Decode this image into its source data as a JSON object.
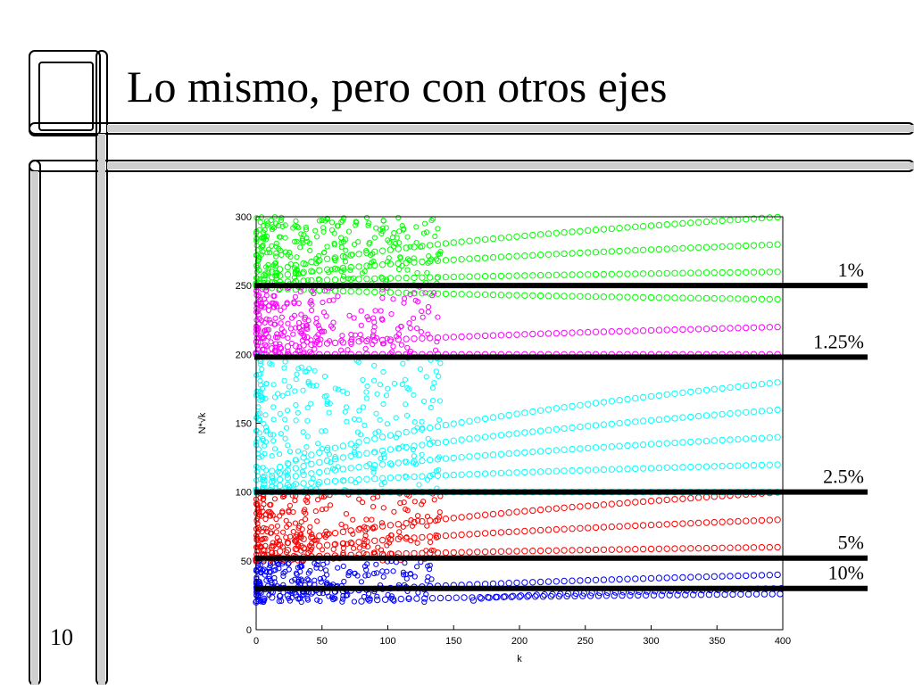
{
  "slide": {
    "title": "Lo mismo, pero con otros ejes",
    "page_number": "10"
  },
  "chart_data": {
    "type": "scatter",
    "title": "",
    "xlabel": "k",
    "ylabel": "N*√k",
    "xlim": [
      0,
      400
    ],
    "ylim": [
      0,
      300
    ],
    "xticks": [
      0,
      50,
      100,
      150,
      200,
      250,
      300,
      350,
      400
    ],
    "yticks": [
      0,
      50,
      100,
      150,
      200,
      250,
      300
    ],
    "grid": false,
    "series": [
      {
        "color": "#0000ff",
        "band": [
          20,
          50
        ],
        "curve_ends": [
          40,
          26,
          30
        ],
        "curve_starts": [
          0,
          80,
          165
        ]
      },
      {
        "color": "#ff0000",
        "band": [
          50,
          100
        ],
        "curve_ends": [
          60,
          80,
          100
        ],
        "curve_starts": [
          0,
          0,
          0
        ]
      },
      {
        "color": "#00ffff",
        "band": [
          100,
          200
        ],
        "curve_ends": [
          100,
          120,
          140,
          160,
          180
        ],
        "curve_starts": [
          0,
          0,
          0,
          0,
          0
        ]
      },
      {
        "color": "#ff00ff",
        "band": [
          200,
          250
        ],
        "curve_ends": [
          200,
          220
        ],
        "curve_starts": [
          0,
          0
        ]
      },
      {
        "color": "#00ff00",
        "band": [
          250,
          300
        ],
        "curve_ends": [
          240,
          260,
          280,
          300
        ],
        "curve_starts": [
          0,
          0,
          0,
          0
        ]
      }
    ],
    "thresholds": [
      {
        "label": "1%",
        "y": 250
      },
      {
        "label": "1.25%",
        "y": 198
      },
      {
        "label": "2.5%",
        "y": 100
      },
      {
        "label": "5%",
        "y": 52
      },
      {
        "label": "10%",
        "y": 30
      }
    ]
  }
}
